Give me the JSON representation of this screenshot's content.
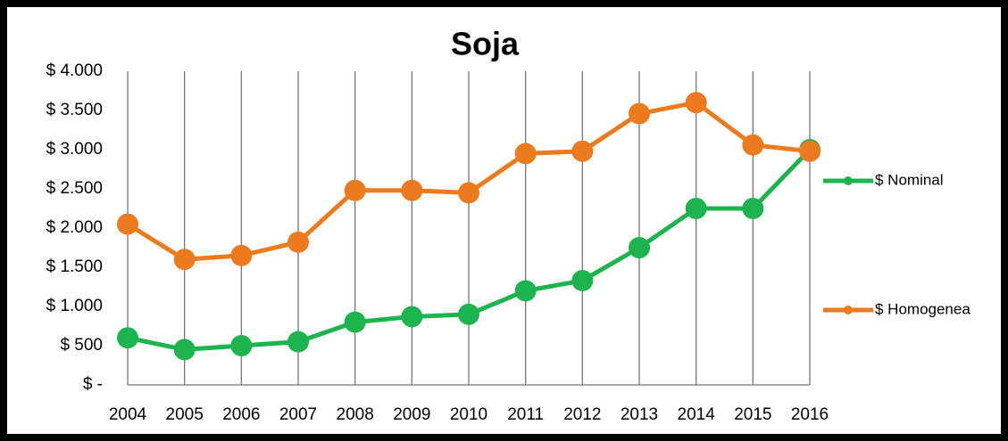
{
  "chart_data": {
    "type": "line",
    "title": "Soja",
    "categories": [
      "2004",
      "2005",
      "2006",
      "2007",
      "2008",
      "2009",
      "2010",
      "2011",
      "2012",
      "2013",
      "2014",
      "2015",
      "2016"
    ],
    "series": [
      {
        "name": "$ Nominal",
        "color": "#1db34f",
        "values": [
          600,
          450,
          500,
          550,
          800,
          870,
          900,
          1200,
          1330,
          1750,
          2250,
          2250,
          3000
        ]
      },
      {
        "name": "$ Homogenea",
        "color": "#ec7a1e",
        "values": [
          2050,
          1600,
          1650,
          1820,
          2480,
          2480,
          2450,
          2950,
          2980,
          3460,
          3600,
          3060,
          2980
        ]
      }
    ],
    "ylim": [
      0,
      4000
    ],
    "yticks": [
      {
        "value": 0,
        "label": "$ -"
      },
      {
        "value": 500,
        "label": "$ 500"
      },
      {
        "value": 1000,
        "label": "$ 1.000"
      },
      {
        "value": 1500,
        "label": "$ 1.500"
      },
      {
        "value": 2000,
        "label": "$ 2.000"
      },
      {
        "value": 2500,
        "label": "$ 2.500"
      },
      {
        "value": 3000,
        "label": "$ 3.000"
      },
      {
        "value": 3500,
        "label": "$ 3.500"
      },
      {
        "value": 4000,
        "label": "$ 4.000"
      }
    ],
    "grid": true,
    "legend": "right"
  }
}
